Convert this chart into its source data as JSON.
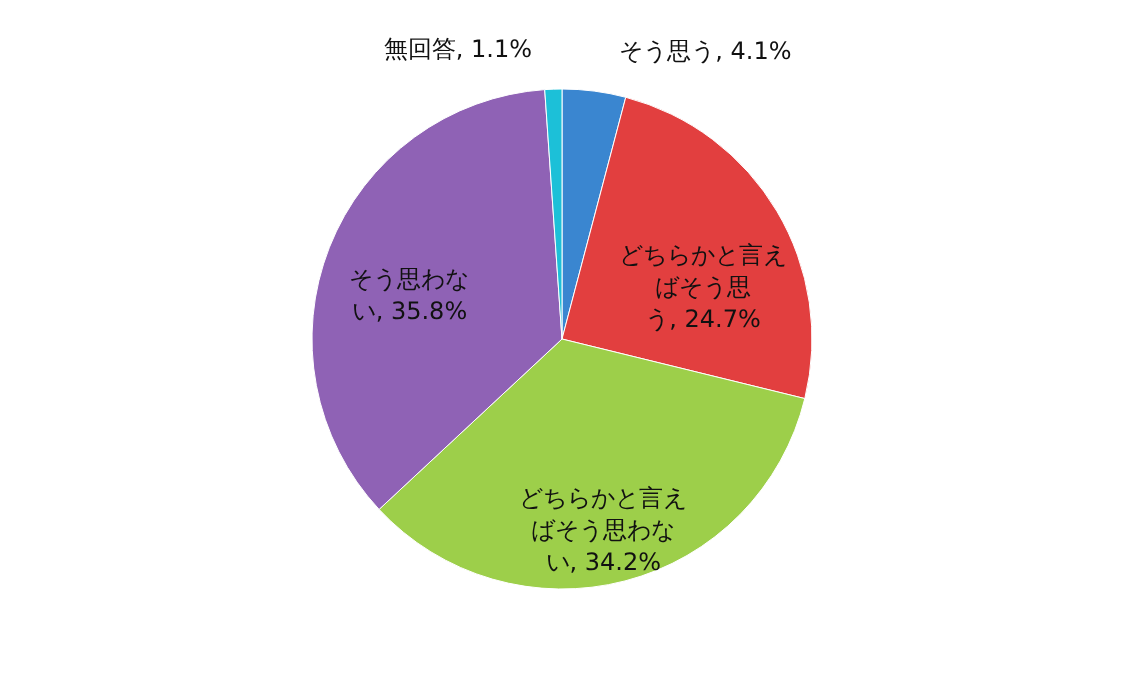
{
  "chart_data": {
    "type": "pie",
    "categories": [
      "そう思う",
      "どちらかと言えばそう思う",
      "どちらかと言えばそう思わない",
      "そう思わない",
      "無回答"
    ],
    "values": [
      4.1,
      24.7,
      34.2,
      35.8,
      1.1
    ],
    "value_labels": [
      "4.1%",
      "24.7%",
      "34.2%",
      "35.8%",
      "1.1%"
    ],
    "colors": [
      "#3a86d0",
      "#e23f3f",
      "#9dcf4a",
      "#8f62b5",
      "#1cc0d8"
    ]
  }
}
